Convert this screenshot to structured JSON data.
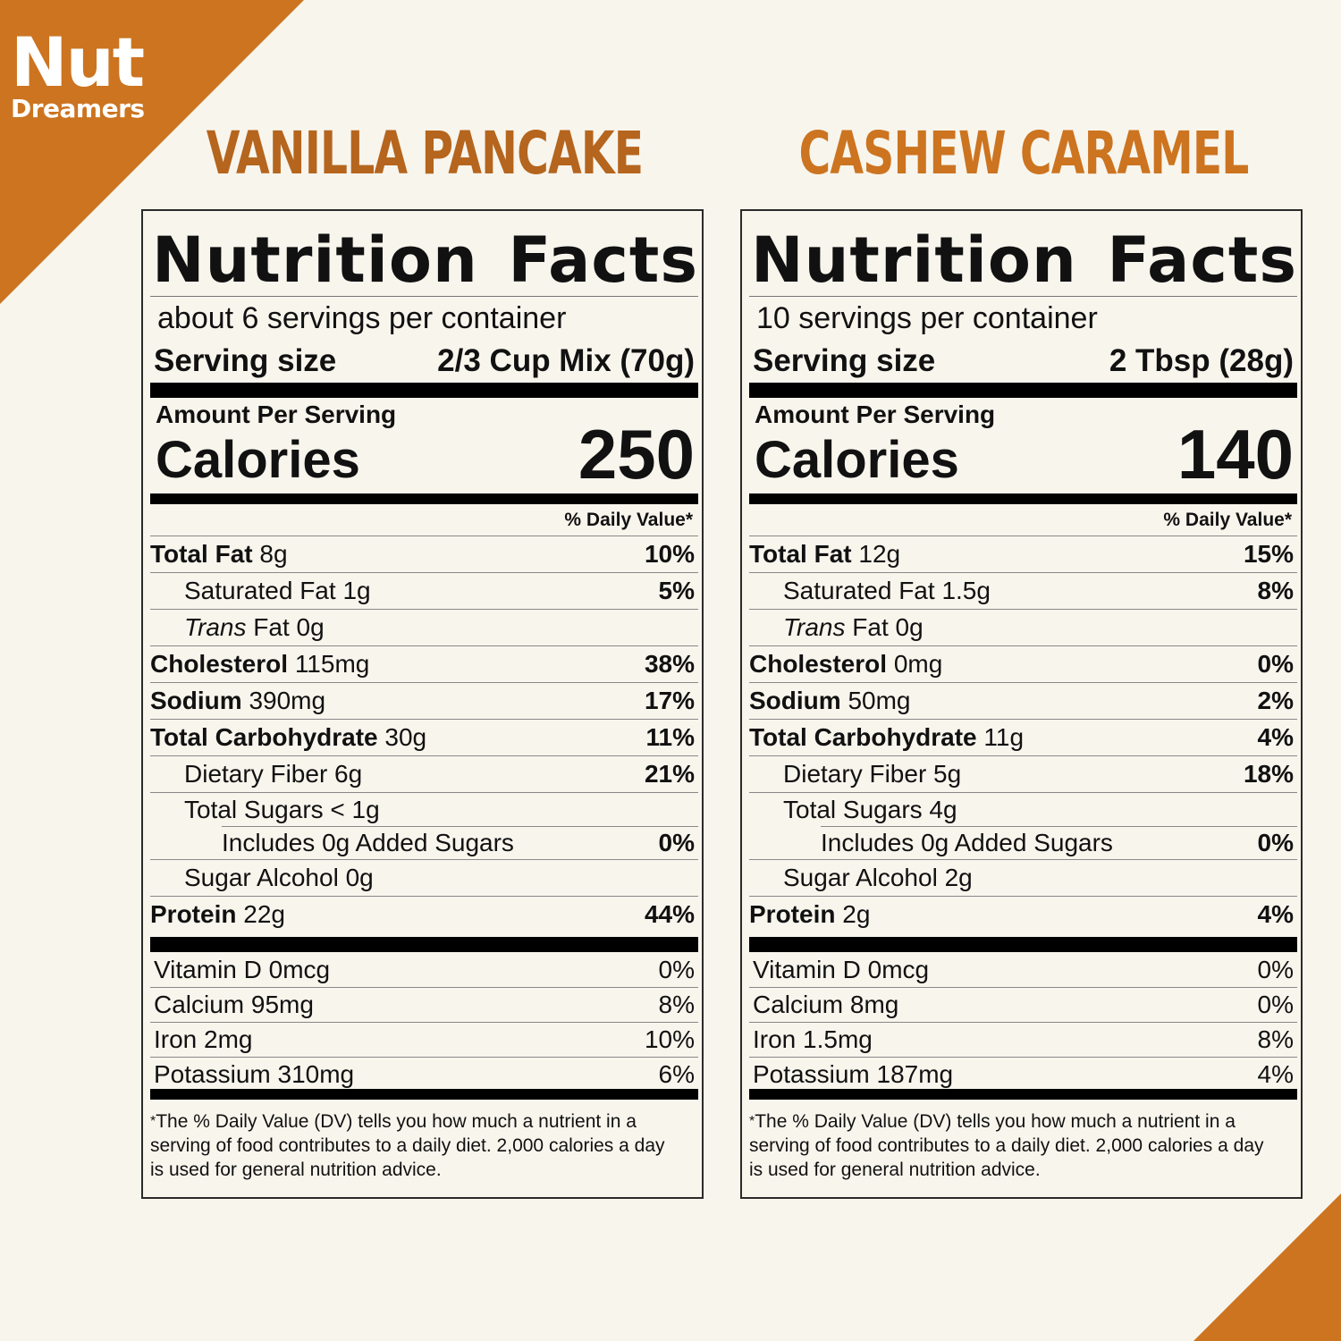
{
  "brand": {
    "logo_line1": "Nut",
    "logo_line2": "Dreamers"
  },
  "colors": {
    "accent": "#cc7420",
    "title_left": "#b5651d",
    "background": "#f8f5ed"
  },
  "labels": [
    {
      "product": "VANILLA PANCAKE",
      "heading_word1": "Nutrition",
      "heading_word2": "Facts",
      "servings": "about 6 servings per container",
      "serving_size_label": "Serving size",
      "serving_size_value": "2/3 Cup Mix (70g)",
      "amount_per_serving": "Amount Per Serving",
      "calories_label": "Calories",
      "calories": "250",
      "dv_header": "% Daily Value*",
      "nutrients": {
        "total_fat": {
          "name": "Total Fat",
          "amount": "8g",
          "dv": "10%"
        },
        "sat_fat": {
          "name": "Saturated Fat",
          "amount": "1g",
          "dv": "5%"
        },
        "trans_fat": {
          "italic": "Trans",
          "name": "Fat",
          "amount": "0g",
          "dv": ""
        },
        "cholesterol": {
          "name": "Cholesterol",
          "amount": "115mg",
          "dv": "38%"
        },
        "sodium": {
          "name": "Sodium",
          "amount": "390mg",
          "dv": "17%"
        },
        "carb": {
          "name": "Total Carbohydrate",
          "amount": "30g",
          "dv": "11%"
        },
        "fiber": {
          "name": "Dietary Fiber",
          "amount": "6g",
          "dv": "21%"
        },
        "sugars": {
          "name": "Total Sugars",
          "amount": "< 1g",
          "dv": ""
        },
        "added_sugars": {
          "name": "Includes 0g Added Sugars",
          "dv": "0%"
        },
        "sugar_alcohol": {
          "name": "Sugar Alcohol",
          "amount": "0g",
          "dv": ""
        },
        "protein": {
          "name": "Protein",
          "amount": "22g",
          "dv": "44%"
        }
      },
      "vitamins": [
        {
          "name": "Vitamin D 0mcg",
          "dv": "0%"
        },
        {
          "name": "Calcium 95mg",
          "dv": "8%"
        },
        {
          "name": "Iron 2mg",
          "dv": "10%"
        },
        {
          "name": "Potassium 310mg",
          "dv": "6%"
        }
      ],
      "footnote_star": "*",
      "footnote": "The % Daily Value (DV) tells you how much a nutrient in a serving of food contributes to a daily diet. 2,000 calories a day is used for general nutrition advice."
    },
    {
      "product": "CASHEW CARAMEL",
      "heading_word1": "Nutrition",
      "heading_word2": "Facts",
      "servings": "10 servings per container",
      "serving_size_label": "Serving size",
      "serving_size_value": "2 Tbsp (28g)",
      "amount_per_serving": "Amount Per Serving",
      "calories_label": "Calories",
      "calories": "140",
      "dv_header": "% Daily Value*",
      "nutrients": {
        "total_fat": {
          "name": "Total Fat",
          "amount": "12g",
          "dv": "15%"
        },
        "sat_fat": {
          "name": "Saturated Fat",
          "amount": "1.5g",
          "dv": "8%"
        },
        "trans_fat": {
          "italic": "Trans",
          "name": "Fat",
          "amount": "0g",
          "dv": ""
        },
        "cholesterol": {
          "name": "Cholesterol",
          "amount": "0mg",
          "dv": "0%"
        },
        "sodium": {
          "name": "Sodium",
          "amount": "50mg",
          "dv": "2%"
        },
        "carb": {
          "name": "Total Carbohydrate",
          "amount": "11g",
          "dv": "4%"
        },
        "fiber": {
          "name": "Dietary Fiber",
          "amount": "5g",
          "dv": "18%"
        },
        "sugars": {
          "name": "Total Sugars",
          "amount": "4g",
          "dv": ""
        },
        "added_sugars": {
          "name": "Includes 0g Added Sugars",
          "dv": "0%"
        },
        "sugar_alcohol": {
          "name": "Sugar Alcohol",
          "amount": "2g",
          "dv": ""
        },
        "protein": {
          "name": "Protein",
          "amount": "2g",
          "dv": "4%"
        }
      },
      "vitamins": [
        {
          "name": "Vitamin D 0mcg",
          "dv": "0%"
        },
        {
          "name": "Calcium 8mg",
          "dv": "0%"
        },
        {
          "name": "Iron 1.5mg",
          "dv": "8%"
        },
        {
          "name": "Potassium 187mg",
          "dv": "4%"
        }
      ],
      "footnote_star": "*",
      "footnote": "The % Daily Value (DV) tells you how much a nutrient in a serving of food contributes to a daily diet. 2,000 calories a day is used for general nutrition advice."
    }
  ]
}
